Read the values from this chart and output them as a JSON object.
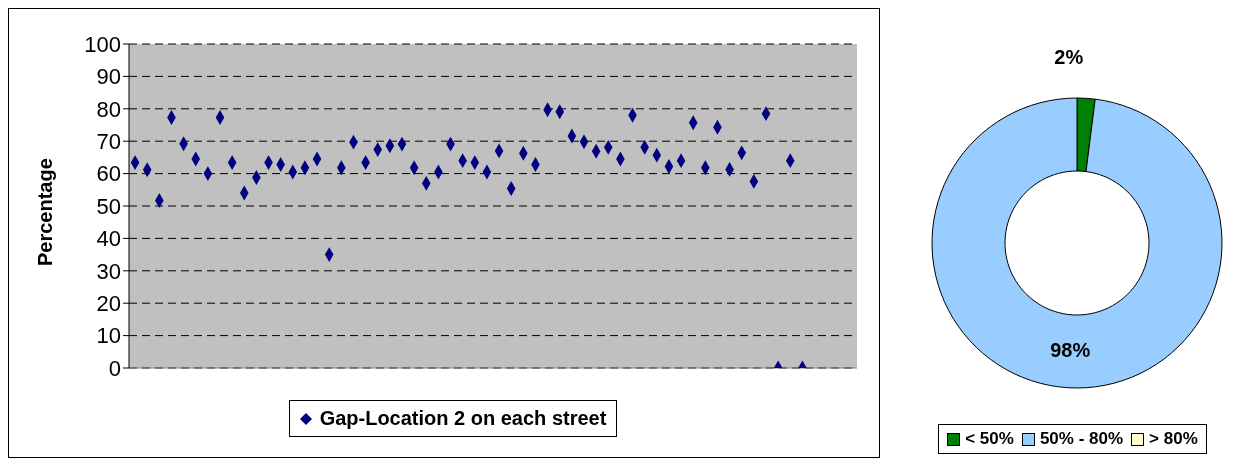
{
  "chart_data": [
    {
      "type": "scatter",
      "ylabel": "Percentage",
      "categories": [
        null,
        null,
        null,
        null,
        null,
        null,
        null,
        null,
        null,
        null,
        null,
        null,
        null,
        null,
        null,
        null,
        null,
        null,
        null,
        null,
        null,
        null,
        null,
        null,
        null,
        null,
        null,
        null,
        null,
        null,
        null,
        null,
        null,
        null,
        null,
        null,
        null,
        null,
        null,
        null,
        null,
        null,
        null,
        null,
        null,
        null,
        null,
        null,
        null,
        null,
        null,
        null,
        null,
        null,
        null,
        null,
        null,
        null,
        null,
        null
      ],
      "ylim": [
        0,
        100
      ],
      "yticks": [
        0,
        10,
        20,
        30,
        40,
        50,
        60,
        70,
        80,
        90,
        100
      ],
      "tick_labels": "y",
      "grid": "y",
      "legend": "bottom",
      "marker": "diamond",
      "series": [
        {
          "name": "Gap-Location 2 on each street",
          "color": "#000080",
          "values": [
            63.4,
            61.2,
            51.7,
            77.3,
            69.2,
            64.5,
            60,
            77.3,
            63.4,
            54,
            58.8,
            63.4,
            62.8,
            60.5,
            61.8,
            64.5,
            35,
            61.8,
            69.7,
            63.4,
            67.4,
            68.6,
            69.1,
            61.8,
            57,
            60.5,
            69.1,
            64,
            63.4,
            60.5,
            67,
            55.4,
            66.3,
            62.8,
            79.7,
            79.1,
            71.6,
            69.8,
            66.9,
            68.1,
            64.5,
            78,
            68.1,
            65.7,
            62.2,
            64,
            75.7,
            61.8,
            74.3,
            61.3,
            66.4,
            57.6,
            78.5,
            0,
            64,
            0,
            null,
            null,
            null,
            null
          ]
        }
      ]
    },
    {
      "type": "donut",
      "categories": [
        "< 50%",
        "50% - 80%",
        "> 80%"
      ],
      "values": [
        2,
        98,
        0
      ],
      "colors": [
        "#008000",
        "#99ccff",
        "#ffffcc"
      ],
      "value_labels": [
        "2%",
        "98%",
        null
      ],
      "legend": "bottom"
    }
  ]
}
